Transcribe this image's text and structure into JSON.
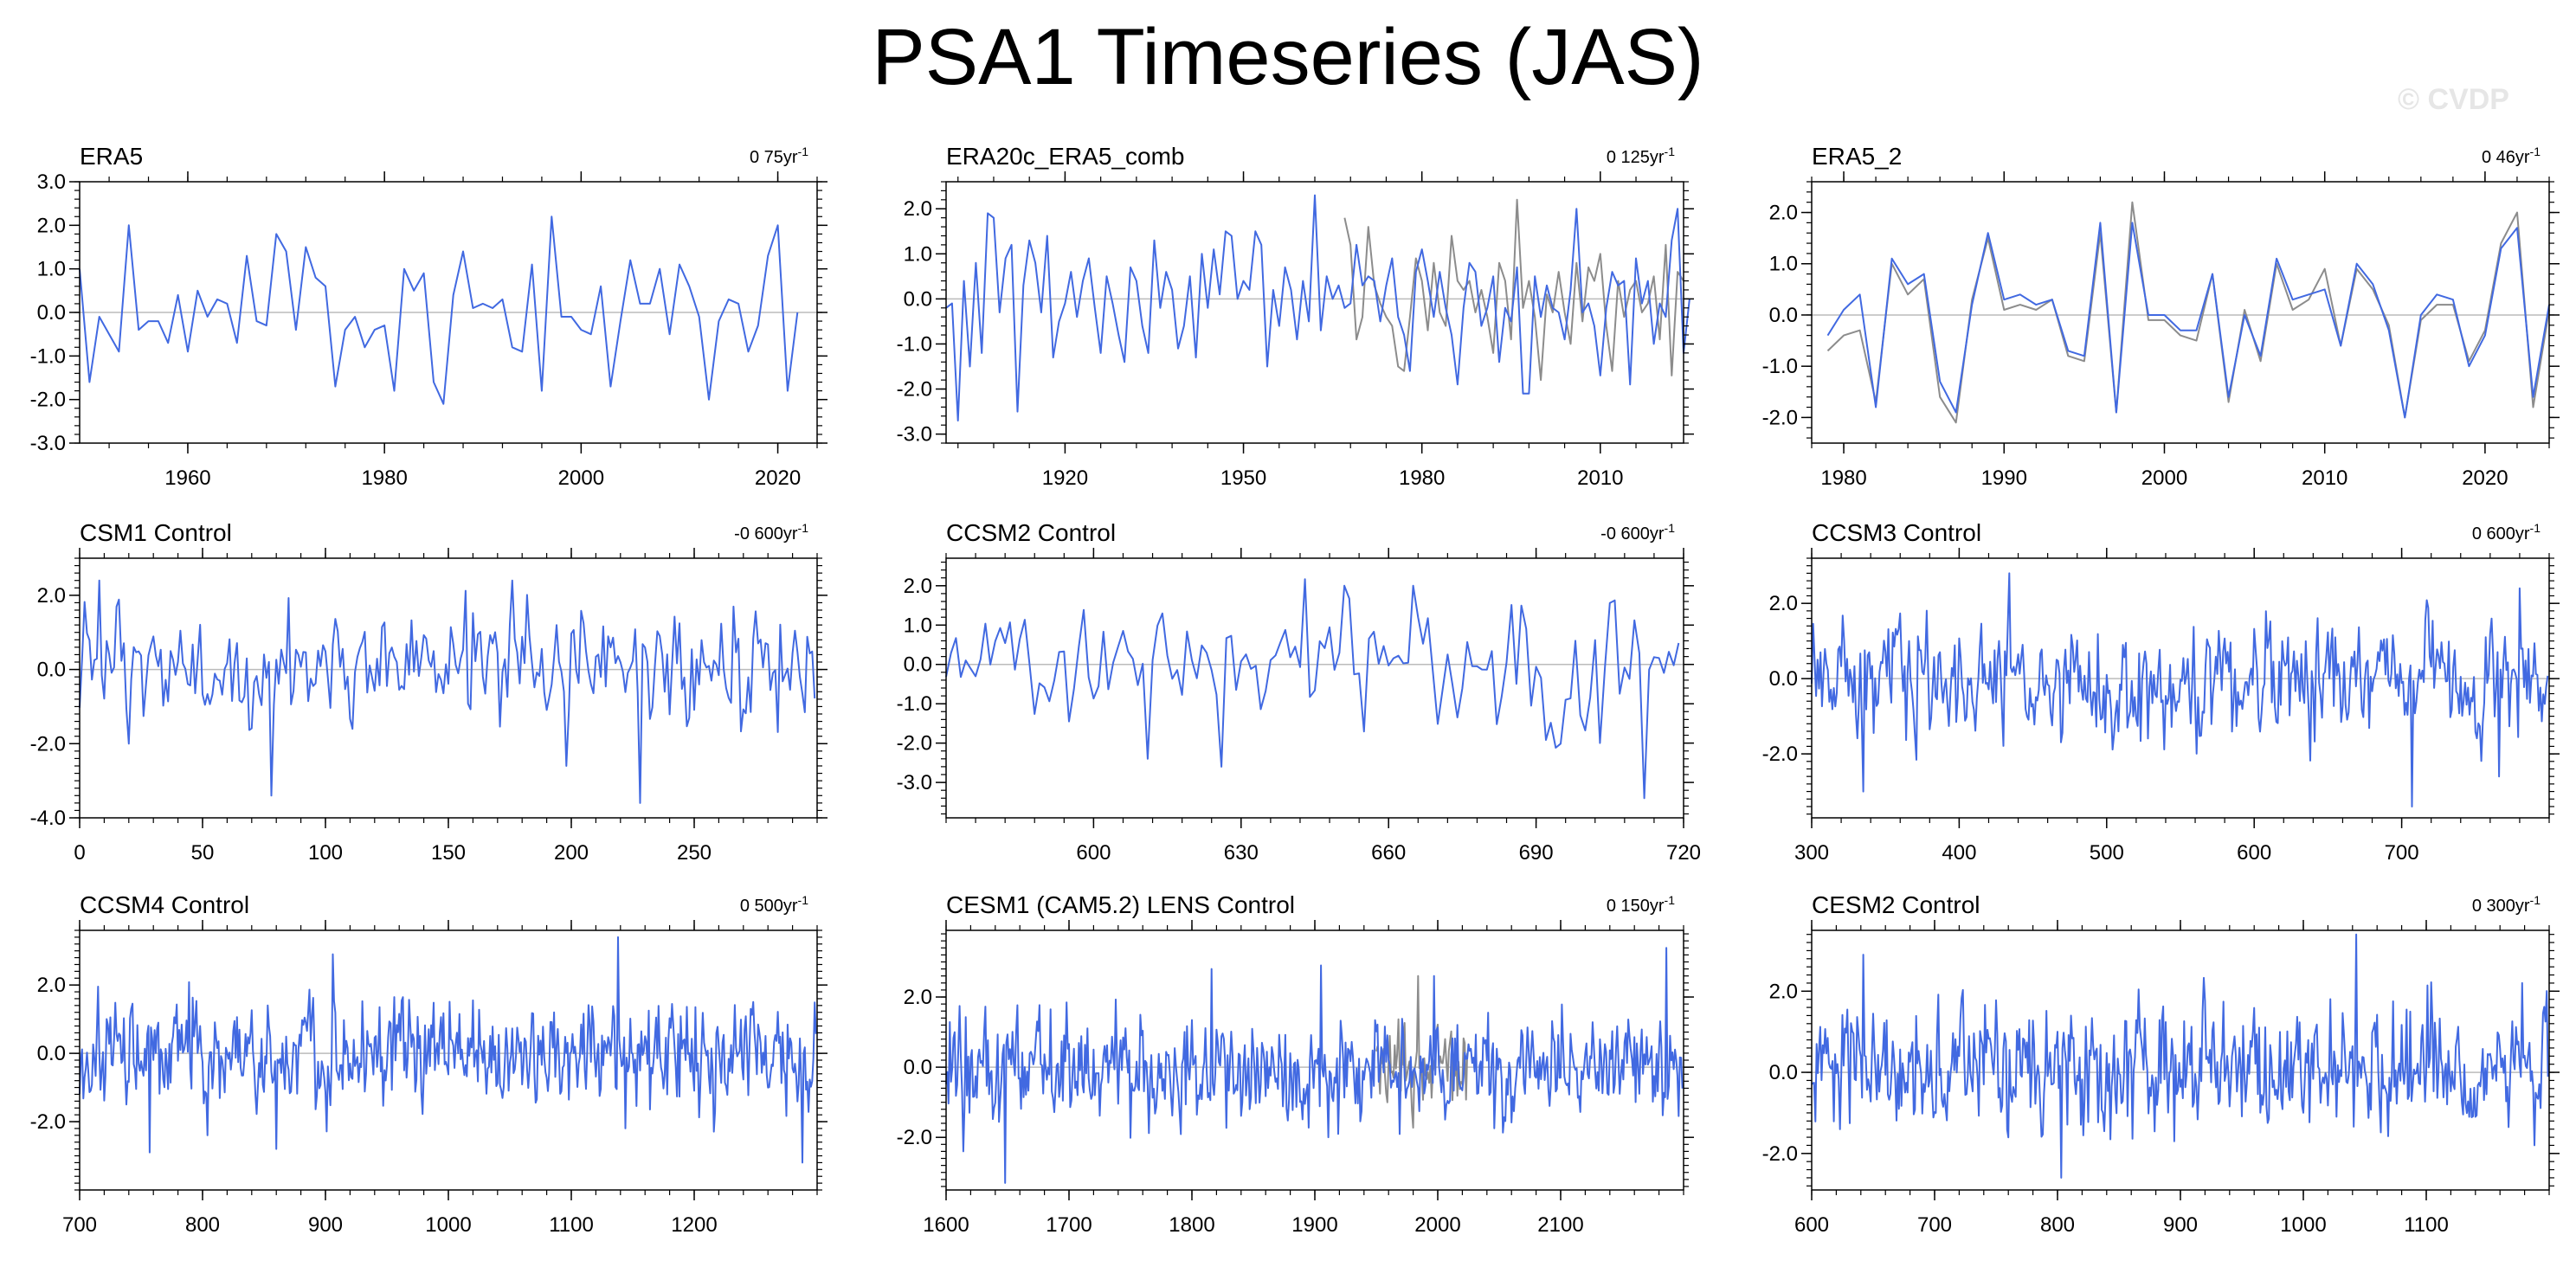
{
  "title": "PSA1 Timeseries (JAS)",
  "watermark": "© CVDP",
  "colors": {
    "model": "#4169e1",
    "obs": "#8c8c8c",
    "axis": "#000000",
    "zero": "#bbbbbb"
  },
  "chart_data": [
    {
      "type": "line",
      "title": "ERA5",
      "rate": "0 75yr",
      "xlim": [
        1949,
        2024
      ],
      "ylim": [
        -3,
        3
      ],
      "yticks": [
        -3,
        -2,
        -1,
        0,
        1,
        2,
        3
      ],
      "ytick_labels": [
        "-3.0",
        "-2.0",
        "-1.0",
        "0.0",
        "1.0",
        "2.0",
        "3.0"
      ],
      "xticks": [
        1960,
        1980,
        2000,
        2020
      ],
      "xtick_labels": [
        "1960",
        "1980",
        "2000",
        "2020"
      ],
      "series": [
        {
          "name": "ERA5",
          "color": "model",
          "x0": 1949,
          "step": 1,
          "values": [
            1.0,
            -1.6,
            -0.1,
            -0.5,
            -0.9,
            2.0,
            -0.4,
            -0.2,
            -0.2,
            -0.7,
            0.4,
            -0.9,
            0.5,
            -0.1,
            0.3,
            0.2,
            -0.7,
            1.3,
            -0.2,
            -0.3,
            1.8,
            1.4,
            -0.4,
            1.5,
            0.8,
            0.6,
            -1.7,
            -0.4,
            -0.1,
            -0.8,
            -0.4,
            -0.3,
            -1.8,
            1.0,
            0.5,
            0.9,
            -1.6,
            -2.1,
            0.4,
            1.4,
            0.1,
            0.2,
            0.1,
            0.3,
            -0.8,
            -0.9,
            1.1,
            -1.8,
            2.2,
            -0.1,
            -0.1,
            -0.4,
            -0.5,
            0.6,
            -1.7,
            -0.2,
            1.2,
            0.2,
            0.2,
            1.0,
            -0.5,
            1.1,
            0.6,
            -0.1,
            -2.0,
            -0.2,
            0.3,
            0.2,
            -0.9,
            -0.3,
            1.3,
            2.0,
            -1.8,
            0.0
          ]
        }
      ]
    },
    {
      "type": "line",
      "title": "ERA20c_ERA5_comb",
      "rate": "0 125yr",
      "xlim": [
        1900,
        2024
      ],
      "ylim": [
        -3.2,
        2.6
      ],
      "yticks": [
        -3,
        -2,
        -1,
        0,
        1,
        2
      ],
      "ytick_labels": [
        "-3.0",
        "-2.0",
        "-1.0",
        "0.0",
        "1.0",
        "2.0"
      ],
      "xticks": [
        1920,
        1950,
        1980,
        2010
      ],
      "xtick_labels": [
        "1920",
        "1950",
        "1980",
        "2010"
      ],
      "series": [
        {
          "name": "obs",
          "color": "obs",
          "x0": 1967,
          "step": 1,
          "values": [
            1.8,
            1.2,
            -0.9,
            -0.4,
            1.6,
            0.3,
            -0.1,
            -0.4,
            -0.6,
            -1.5,
            -1.6,
            -0.4,
            0.9,
            0.4,
            -0.7,
            0.8,
            -0.3,
            -0.6,
            1.4,
            0.4,
            0.2,
            0.4,
            -0.3,
            0.2,
            -0.4,
            -1.2,
            0.8,
            0.4,
            -0.9,
            2.2,
            -0.2,
            0.4,
            -0.4,
            -1.8,
            0.1,
            -0.3,
            0.6,
            -0.3,
            -1.0,
            0.8,
            -0.5,
            0.7,
            0.4,
            1.0,
            -0.6,
            -1.6,
            0.4,
            -0.4,
            0.2,
            0.4,
            -0.3,
            -0.1,
            0.5,
            -0.9,
            1.2,
            -1.7,
            0.6,
            0.4
          ]
        },
        {
          "name": "model",
          "color": "model",
          "x0": 1900,
          "step": 1,
          "values": [
            -0.2,
            -0.1,
            -2.7,
            0.4,
            -1.5,
            0.8,
            -1.2,
            1.9,
            1.8,
            -0.3,
            0.9,
            1.2,
            -2.5,
            0.3,
            1.3,
            0.8,
            -0.3,
            1.4,
            -1.3,
            -0.5,
            -0.1,
            0.6,
            -0.4,
            0.4,
            0.9,
            -0.2,
            -1.2,
            0.5,
            -0.1,
            -0.8,
            -1.4,
            0.7,
            0.4,
            -0.6,
            -1.2,
            1.3,
            -0.2,
            0.6,
            0.2,
            -1.1,
            -0.6,
            0.5,
            -1.3,
            1.0,
            -0.2,
            1.1,
            0.1,
            1.5,
            1.4,
            0.0,
            0.4,
            0.2,
            1.5,
            1.2,
            -1.5,
            0.2,
            -0.6,
            0.7,
            0.2,
            -0.9,
            0.4,
            -0.5,
            2.3,
            -0.7,
            0.5,
            0.0,
            0.3,
            -0.2,
            -0.1,
            1.2,
            0.3,
            0.5,
            0.4,
            -0.5,
            0.3,
            0.9,
            -0.4,
            -0.8,
            -1.6,
            0.6,
            1.1,
            0.4,
            -0.4,
            0.6,
            -0.2,
            -0.8,
            -1.9,
            -0.2,
            0.8,
            0.6,
            -0.6,
            -0.2,
            0.5,
            -1.4,
            -0.2,
            -0.5,
            0.7,
            -2.1,
            -2.1,
            0.5,
            -0.4,
            0.3,
            -0.2,
            -0.3,
            -0.9,
            0.2,
            2.0,
            -0.3,
            -0.1,
            -0.6,
            -1.7,
            -0.2,
            0.6,
            0.3,
            0.4,
            -1.9,
            0.9,
            -0.1,
            0.4,
            -1.0,
            -0.1,
            -0.4,
            1.3,
            2.0,
            -1.2,
            0.0
          ]
        }
      ]
    },
    {
      "type": "line",
      "title": "ERA5_2",
      "rate": "0 46yr",
      "xlim": [
        1978,
        2024
      ],
      "ylim": [
        -2.5,
        2.6
      ],
      "yticks": [
        -2,
        -1,
        0,
        1,
        2
      ],
      "ytick_labels": [
        "-2.0",
        "-1.0",
        "0.0",
        "1.0",
        "2.0"
      ],
      "xticks": [
        1980,
        1990,
        2000,
        2010,
        2020
      ],
      "xtick_labels": [
        "1980",
        "1990",
        "2000",
        "2010",
        "2020"
      ],
      "series": [
        {
          "name": "obs",
          "color": "obs",
          "x0": 1979,
          "step": 1,
          "values": [
            -0.7,
            -0.4,
            -0.3,
            -1.7,
            1.0,
            0.4,
            0.7,
            -1.6,
            -2.1,
            0.3,
            1.5,
            0.1,
            0.2,
            0.1,
            0.3,
            -0.8,
            -0.9,
            1.6,
            -1.9,
            2.2,
            -0.1,
            -0.1,
            -0.4,
            -0.5,
            0.8,
            -1.7,
            0.1,
            -0.9,
            1.0,
            0.1,
            0.3,
            0.9,
            -0.6,
            0.9,
            0.5,
            -0.2,
            -2.0,
            -0.1,
            0.2,
            0.2,
            -0.9,
            -0.3,
            1.4,
            2.0,
            -1.8,
            0.1
          ]
        },
        {
          "name": "model",
          "color": "model",
          "x0": 1979,
          "step": 1,
          "values": [
            -0.4,
            0.1,
            0.4,
            -1.8,
            1.1,
            0.6,
            0.8,
            -1.3,
            -1.9,
            0.2,
            1.6,
            0.3,
            0.4,
            0.2,
            0.3,
            -0.7,
            -0.8,
            1.8,
            -1.9,
            1.8,
            0.0,
            0.0,
            -0.3,
            -0.3,
            0.8,
            -1.6,
            0.0,
            -0.8,
            1.1,
            0.3,
            0.4,
            0.5,
            -0.6,
            1.0,
            0.6,
            -0.3,
            -2.0,
            0.0,
            0.4,
            0.3,
            -1.0,
            -0.4,
            1.3,
            1.7,
            -1.6,
            0.2
          ]
        }
      ]
    },
    {
      "type": "line",
      "title": "CSM1 Control",
      "rate": "-0 600yr",
      "xlim": [
        0,
        300
      ],
      "ylim": [
        -4,
        3
      ],
      "yticks": [
        -4,
        -2,
        0,
        2
      ],
      "ytick_labels": [
        "-4.0",
        "-2.0",
        "0.0",
        "2.0"
      ],
      "xticks": [
        0,
        50,
        100,
        150,
        200,
        250
      ],
      "xtick_labels": [
        "0",
        "50",
        "100",
        "150",
        "200",
        "250"
      ],
      "series": [
        {
          "name": "model",
          "color": "model",
          "x0": 0,
          "step": 1,
          "amp": 1.0,
          "seed": 11,
          "n": 300,
          "spikes": [
            [
              78,
              -3.4
            ],
            [
              176,
              2.4
            ],
            [
              228,
              -3.6
            ],
            [
              198,
              -2.6
            ],
            [
              20,
              -2.0
            ]
          ]
        }
      ]
    },
    {
      "type": "line",
      "title": "CCSM2 Control",
      "rate": "-0 600yr",
      "xlim": [
        570,
        720
      ],
      "ylim": [
        -3.9,
        2.7
      ],
      "yticks": [
        -3,
        -2,
        -1,
        0,
        1,
        2
      ],
      "ytick_labels": [
        "-3.0",
        "-2.0",
        "-1.0",
        "0.0",
        "1.0",
        "2.0"
      ],
      "xticks": [
        600,
        630,
        660,
        690,
        720
      ],
      "xtick_labels": [
        "600",
        "630",
        "660",
        "690",
        "720"
      ],
      "series": [
        {
          "name": "model",
          "color": "model",
          "x0": 570,
          "step": 1,
          "amp": 1.0,
          "seed": 23,
          "n": 150,
          "spikes": [
            [
              611,
              -2.4
            ],
            [
              626,
              -2.6
            ],
            [
              651,
              2.0
            ],
            [
              665,
              2.0
            ],
            [
              703,
              -2.0
            ],
            [
              712,
              -3.4
            ]
          ]
        }
      ]
    },
    {
      "type": "line",
      "title": "CCSM3 Control",
      "rate": "0 600yr",
      "xlim": [
        300,
        800
      ],
      "ylim": [
        -3.7,
        3.2
      ],
      "yticks": [
        -2,
        0,
        2
      ],
      "ytick_labels": [
        "-2.0",
        "0.0",
        "2.0"
      ],
      "xticks": [
        300,
        400,
        500,
        600,
        700
      ],
      "xtick_labels": [
        "300",
        "400",
        "500",
        "600",
        "700"
      ],
      "series": [
        {
          "name": "model",
          "color": "model",
          "x0": 300,
          "step": 1,
          "amp": 1.0,
          "seed": 37,
          "n": 500,
          "spikes": [
            [
              335,
              -3.0
            ],
            [
              434,
              2.8
            ],
            [
              707,
              -3.4
            ],
            [
              766,
              -2.6
            ],
            [
              780,
              2.4
            ]
          ]
        }
      ]
    },
    {
      "type": "line",
      "title": "CCSM4 Control",
      "rate": "0 500yr",
      "xlim": [
        700,
        1300
      ],
      "ylim": [
        -4.0,
        3.6
      ],
      "yticks": [
        -2,
        0,
        2
      ],
      "ytick_labels": [
        "-2.0",
        "0.0",
        "2.0"
      ],
      "xticks": [
        700,
        800,
        900,
        1000,
        1100,
        1200
      ],
      "xtick_labels": [
        "700",
        "800",
        "900",
        "1000",
        "1100",
        "1200"
      ],
      "series": [
        {
          "name": "model",
          "color": "model",
          "x0": 700,
          "step": 1,
          "amp": 1.0,
          "seed": 41,
          "n": 600,
          "spikes": [
            [
              1138,
              3.4
            ],
            [
              906,
              2.9
            ],
            [
              1288,
              -3.2
            ],
            [
              757,
              -2.9
            ],
            [
              860,
              -2.8
            ]
          ]
        }
      ]
    },
    {
      "type": "line",
      "title": "CESM1 (CAM5.2) LENS Control",
      "rate": "0 150yr",
      "xlim": [
        1600,
        2200
      ],
      "ylim": [
        -3.5,
        3.9
      ],
      "yticks": [
        -2,
        0,
        2
      ],
      "ytick_labels": [
        "-2.0",
        "0.0",
        "2.0"
      ],
      "xticks": [
        1600,
        1700,
        1800,
        1900,
        2000,
        2100
      ],
      "xtick_labels": [
        "1600",
        "1700",
        "1800",
        "1900",
        "2000",
        "2100"
      ],
      "series": [
        {
          "name": "obs",
          "color": "obs",
          "x0": 1950,
          "step": 1,
          "amp": 0.8,
          "seed": 5,
          "n": 75,
          "spikes": [
            [
              1984,
              2.6
            ]
          ]
        },
        {
          "name": "model",
          "color": "model",
          "x0": 1600,
          "step": 1,
          "amp": 1.0,
          "seed": 53,
          "n": 600,
          "spikes": [
            [
              1648,
              -3.3
            ],
            [
              2186,
              3.4
            ],
            [
              1816,
              2.8
            ],
            [
              1905,
              2.9
            ],
            [
              1997,
              2.6
            ]
          ]
        }
      ]
    },
    {
      "type": "line",
      "title": "CESM2 Control",
      "rate": "0 300yr",
      "xlim": [
        600,
        1200
      ],
      "ylim": [
        -2.9,
        3.5
      ],
      "yticks": [
        -2,
        0,
        2
      ],
      "ytick_labels": [
        "-2.0",
        "0.0",
        "2.0"
      ],
      "xticks": [
        600,
        700,
        800,
        900,
        1000,
        1100
      ],
      "xtick_labels": [
        "600",
        "700",
        "800",
        "900",
        "1000",
        "1100"
      ],
      "series": [
        {
          "name": "model",
          "color": "model",
          "x0": 600,
          "step": 1,
          "amp": 1.0,
          "seed": 67,
          "n": 600,
          "spikes": [
            [
              1043,
              3.4
            ],
            [
              642,
              2.9
            ],
            [
              803,
              -2.6
            ],
            [
              1178,
              2.2
            ],
            [
              1188,
              -1.8
            ]
          ]
        }
      ]
    }
  ]
}
